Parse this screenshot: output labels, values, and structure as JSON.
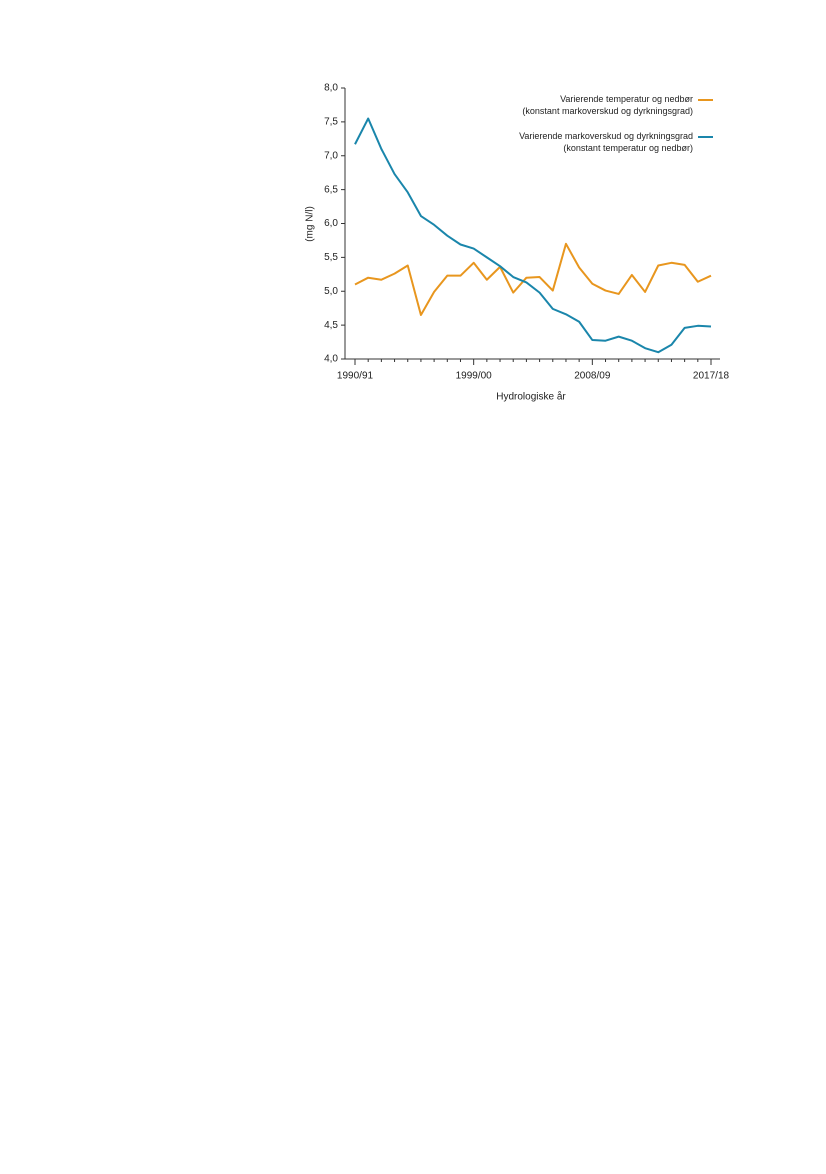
{
  "chart_data": {
    "type": "line",
    "categories": [
      "1990/91",
      null,
      null,
      null,
      null,
      null,
      null,
      null,
      null,
      "1999/00",
      null,
      null,
      null,
      null,
      null,
      null,
      null,
      null,
      "2008/09",
      null,
      null,
      null,
      null,
      null,
      null,
      null,
      null,
      "2017/18"
    ],
    "x_label": "Hydrologiske år",
    "y_label": "(mg N/l)",
    "ylim": [
      4.0,
      8.0
    ],
    "yticks": [
      {
        "value": 4.0,
        "label": "4,0"
      },
      {
        "value": 4.5,
        "label": "4,5"
      },
      {
        "value": 5.0,
        "label": "5,0"
      },
      {
        "value": 5.5,
        "label": "5,5"
      },
      {
        "value": 6.0,
        "label": "6,0"
      },
      {
        "value": 6.5,
        "label": "6,5"
      },
      {
        "value": 7.0,
        "label": "7,0"
      },
      {
        "value": 7.5,
        "label": "7,5"
      },
      {
        "value": 8.0,
        "label": "8,0"
      }
    ],
    "legend": "upper right",
    "series": [
      {
        "name": "Varierende temperatur og nedbør\n(konstant markoverskud og dyrkningsgrad)",
        "color": "#e8961e",
        "values": [
          5.1,
          5.2,
          5.17,
          5.26,
          5.38,
          4.65,
          4.99,
          5.23,
          5.23,
          5.42,
          5.17,
          5.36,
          4.98,
          5.2,
          5.21,
          5.01,
          5.7,
          5.35,
          5.11,
          5.01,
          4.96,
          5.24,
          4.99,
          5.38,
          5.42,
          5.39,
          5.14,
          5.23
        ]
      },
      {
        "name": "Varierende markoverskud og dyrkningsgrad\n(konstant temperatur og nedbør)",
        "color": "#1a86ab",
        "values": [
          7.17,
          7.55,
          7.1,
          6.73,
          6.46,
          6.11,
          5.98,
          5.82,
          5.69,
          5.63,
          5.5,
          5.37,
          5.21,
          5.13,
          4.98,
          4.74,
          4.66,
          4.55,
          4.28,
          4.27,
          4.33,
          4.27,
          4.16,
          4.1,
          4.21,
          4.46,
          4.49,
          4.48
        ]
      }
    ]
  }
}
